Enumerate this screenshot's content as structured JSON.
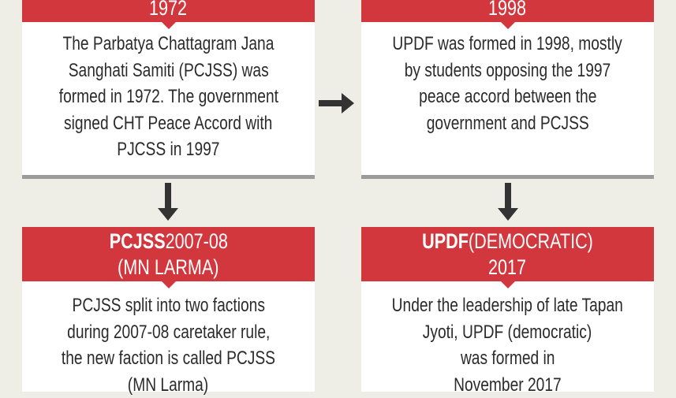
{
  "colors": {
    "header_red": "#d2373e",
    "background": "#efeee6",
    "arrow": "#333333"
  },
  "boxes": [
    {
      "header_bold": "",
      "header_rest": "1972",
      "header_line2": "",
      "lines": [
        "The Parbatya Chattagram Jana",
        "Sanghati Samiti (PCJSS) was",
        "formed in 1972. The government",
        "signed CHT Peace Accord with",
        "PJCSS in 1997"
      ]
    },
    {
      "header_bold": "",
      "header_rest": "1998",
      "header_line2": "",
      "lines": [
        "UPDF was formed in 1998, mostly",
        "by students opposing the 1997",
        "peace accord between the",
        "government and PCJSS"
      ]
    },
    {
      "header_bold": "PCJSS",
      "header_rest": " 2007-08",
      "header_line2": "(MN LARMA)",
      "lines": [
        "PCJSS split into two factions",
        "during 2007-08 caretaker rule,",
        "the new faction is called PCJSS",
        "(MN Larma)"
      ]
    },
    {
      "header_bold": "UPDF",
      "header_rest": " (DEMOCRATIC)",
      "header_line2": "2017",
      "lines": [
        "Under the leadership of late Tapan",
        "Jyoti, UPDF (democratic)",
        "was formed in",
        "November 2017"
      ]
    }
  ],
  "arrows": [
    "arrow-down",
    "arrow-right",
    "arrow-down"
  ]
}
